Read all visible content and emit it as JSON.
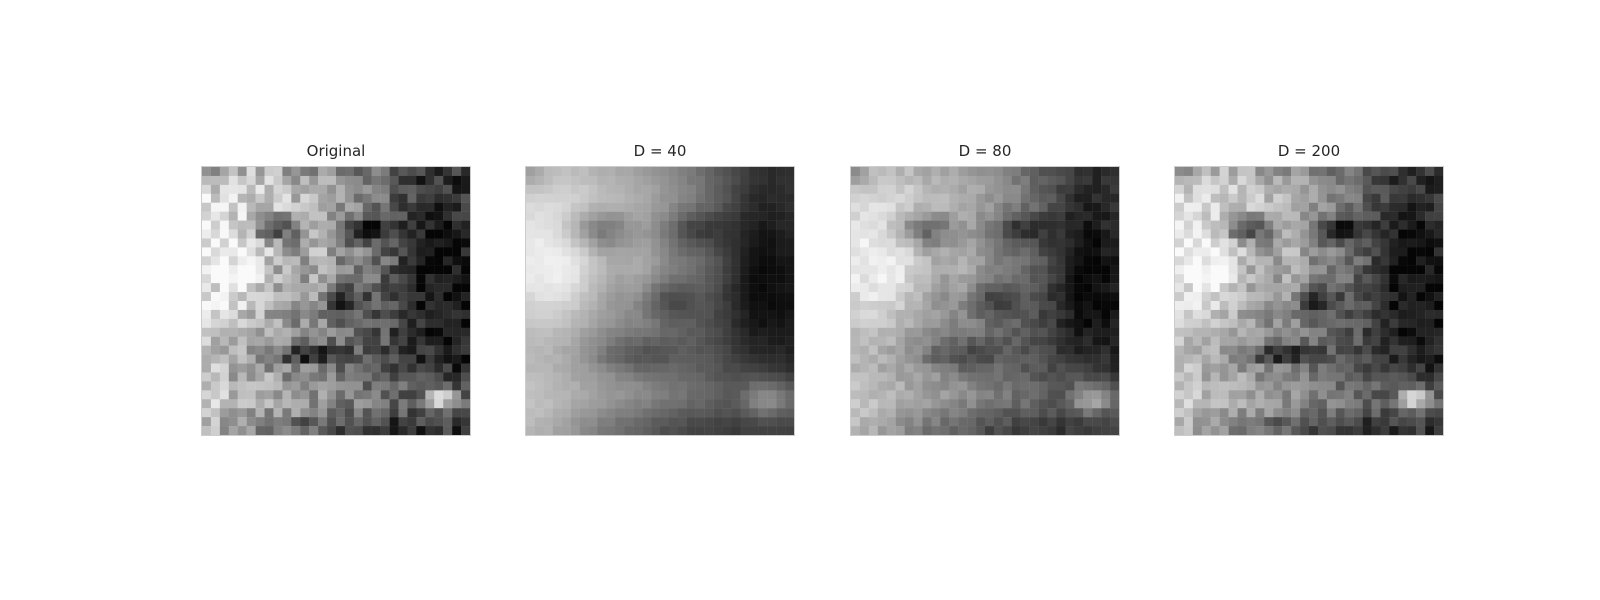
{
  "panels": [
    {
      "title": "Original",
      "variant": "original"
    },
    {
      "title": "D = 40",
      "variant": "smooth"
    },
    {
      "title": "D = 80",
      "variant": "medium"
    },
    {
      "title": "D = 200",
      "variant": "detailed"
    }
  ],
  "colors": {
    "background": "#ffffff",
    "title_text": "#262626",
    "frame": "#cccccc"
  }
}
